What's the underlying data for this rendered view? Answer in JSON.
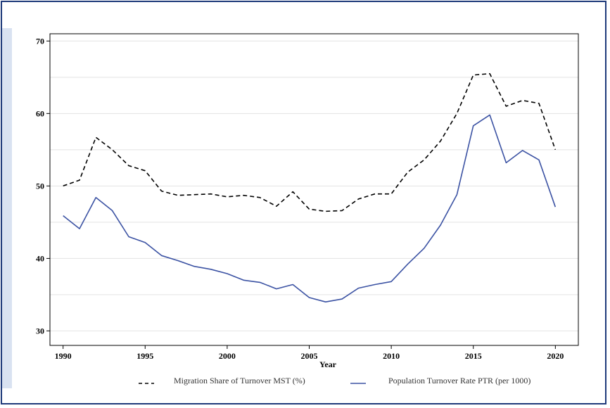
{
  "chart_data": {
    "type": "line",
    "xlabel": "Year",
    "ylabel": "",
    "xlim": [
      1989.2,
      2021.4
    ],
    "ylim": [
      28,
      71
    ],
    "xticks": [
      1990,
      1995,
      2000,
      2005,
      2010,
      2015,
      2020
    ],
    "yticks": [
      30,
      40,
      50,
      60,
      70
    ],
    "grid": true,
    "legend_position": "bottom",
    "x": [
      1990,
      1991,
      1992,
      1993,
      1994,
      1995,
      1996,
      1997,
      1998,
      1999,
      2000,
      2001,
      2002,
      2003,
      2004,
      2005,
      2006,
      2007,
      2008,
      2009,
      2010,
      2011,
      2012,
      2013,
      2014,
      2015,
      2016,
      2017,
      2018,
      2019,
      2020
    ],
    "series": [
      {
        "name": "Migration Share of Turnover MST (%)",
        "style": "dashed",
        "color": "#000000",
        "values": [
          50.0,
          50.8,
          56.7,
          55.0,
          52.8,
          52.1,
          49.3,
          48.7,
          48.8,
          48.9,
          48.5,
          48.7,
          48.4,
          47.2,
          49.2,
          46.8,
          46.5,
          46.6,
          48.2,
          48.9,
          48.9,
          51.9,
          53.6,
          56.2,
          60.0,
          65.3,
          65.5,
          61.0,
          61.8,
          61.4,
          55.0
        ]
      },
      {
        "name": "Population Turnover Rate PTR (per 1000)",
        "style": "solid",
        "color": "#3b52a3",
        "values": [
          45.9,
          44.1,
          48.4,
          46.6,
          43.0,
          42.2,
          40.4,
          39.7,
          38.9,
          38.5,
          37.9,
          37.0,
          36.7,
          35.8,
          36.4,
          34.6,
          34.0,
          34.4,
          35.9,
          36.4,
          36.8,
          39.2,
          41.4,
          44.6,
          48.8,
          58.3,
          59.8,
          53.2,
          54.9,
          53.6,
          47.1
        ]
      }
    ]
  }
}
